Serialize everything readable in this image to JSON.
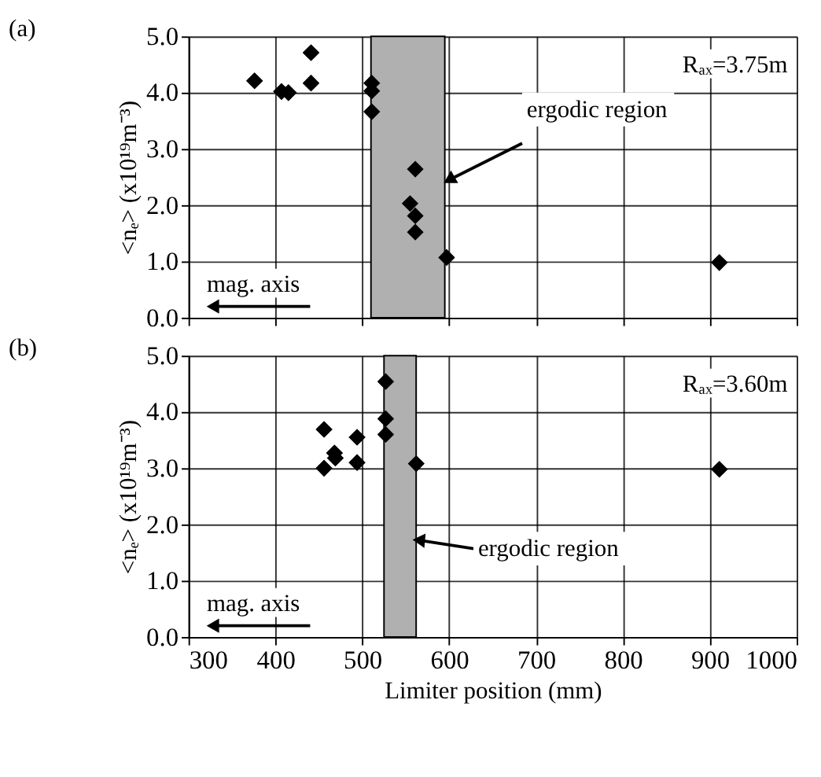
{
  "chart_data": [
    {
      "type": "scatter",
      "title": "(a)",
      "ylabel": "<nₑ> (x10¹⁹m⁻³)",
      "x": [
        376,
        407,
        415,
        441,
        441,
        511,
        511,
        511,
        561,
        555,
        561,
        561,
        597,
        911
      ],
      "values": [
        4.21,
        4.02,
        4.0,
        4.71,
        4.17,
        4.17,
        4.03,
        3.66,
        2.64,
        2.03,
        1.81,
        1.52,
        1.07,
        0.98
      ],
      "color": "#000000",
      "marker": "diamond",
      "xlim": [
        300,
        1000
      ],
      "xticks": [
        300,
        400,
        500,
        600,
        700,
        800,
        900,
        1000
      ],
      "ylim": [
        0,
        5
      ],
      "yticks": [
        {
          "value": 0,
          "label": "0.0"
        },
        {
          "value": 1,
          "label": "1.0"
        },
        {
          "value": 2,
          "label": "2.0"
        },
        {
          "value": 3,
          "label": "3.0"
        },
        {
          "value": 4,
          "label": "4.0"
        },
        {
          "value": 5,
          "label": "5.0"
        }
      ],
      "bands": [
        {
          "axis": "x",
          "from": 510,
          "to": 595,
          "color": "#b0b0b0"
        }
      ],
      "annotations": [
        "Rₐₓ=3.75m",
        "mag. axis",
        {
          "text": "ergodic region",
          "x": 600,
          "y": 2.45
        }
      ],
      "grid": true,
      "legend": false,
      "tick_labels": "y"
    },
    {
      "type": "scatter",
      "title": "(b)",
      "ylabel": "<nₑ> (x10¹⁹m⁻³)",
      "xlabel": "Limiter position (mm)",
      "x": [
        456,
        456,
        468,
        469,
        494,
        494,
        527,
        527,
        527,
        562,
        911
      ],
      "values": [
        3.69,
        3.0,
        3.27,
        3.18,
        3.55,
        3.1,
        4.54,
        3.88,
        3.6,
        3.08,
        2.98
      ],
      "color": "#000000",
      "marker": "diamond",
      "xlim": [
        300,
        1000
      ],
      "xticks": [
        300,
        400,
        500,
        600,
        700,
        800,
        900,
        {
          "value": 1000,
          "label": "1000"
        }
      ],
      "ylim": [
        0,
        5
      ],
      "yticks": [
        {
          "value": 0,
          "label": "0.0"
        },
        {
          "value": 1,
          "label": "1.0"
        },
        {
          "value": 2,
          "label": "2.0"
        },
        {
          "value": 3,
          "label": "3.0"
        },
        {
          "value": 4,
          "label": "4.0"
        },
        {
          "value": 5,
          "label": "5.0"
        }
      ],
      "bands": [
        {
          "axis": "x",
          "from": 525,
          "to": 562,
          "color": "#b0b0b0"
        }
      ],
      "annotations": [
        "Rₐₓ=3.60m",
        "mag. axis",
        {
          "text": "ergodic region",
          "x": 565,
          "y": 1.72
        }
      ],
      "grid": true,
      "legend": false
    }
  ]
}
